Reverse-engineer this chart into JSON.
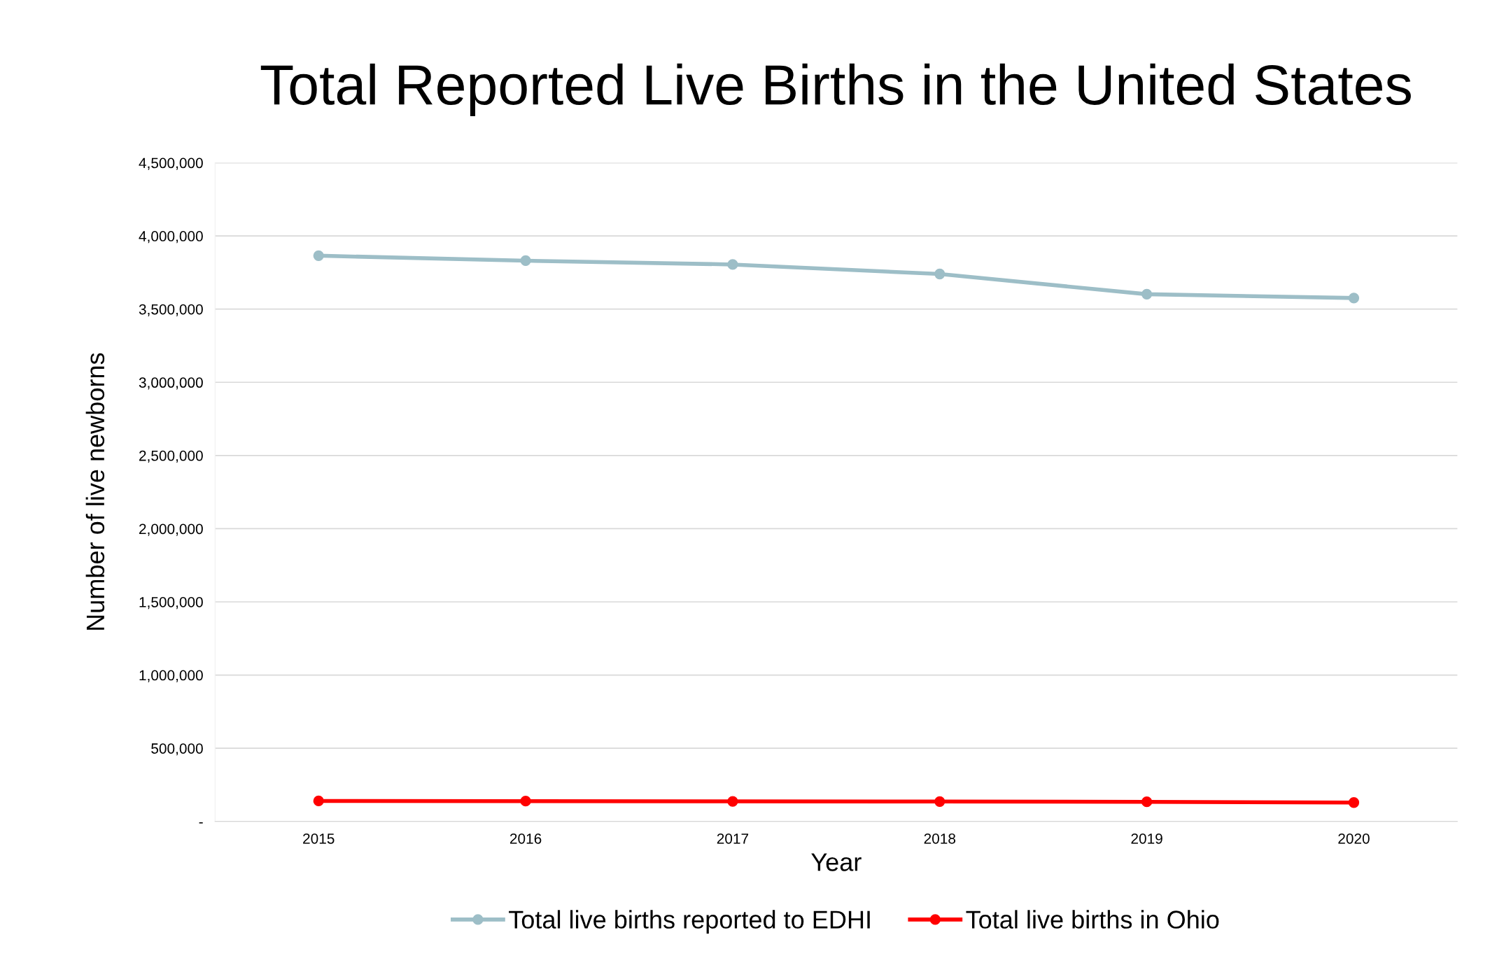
{
  "chart_data": {
    "type": "line",
    "title": "Total Reported Live Births in the United States",
    "xlabel": "Year",
    "ylabel": "Number of live newborns",
    "categories": [
      "2015",
      "2016",
      "2017",
      "2018",
      "2019",
      "2020"
    ],
    "series": [
      {
        "name": "Total live births reported to EDHI",
        "color": "#9dbec7",
        "values": [
          3865000,
          3831000,
          3805000,
          3740000,
          3602000,
          3576000
        ]
      },
      {
        "name": "Total live births in Ohio",
        "color": "#ff0000",
        "values": [
          140000,
          139000,
          137000,
          136000,
          134000,
          129000
        ]
      }
    ],
    "ylim": [
      0,
      4500000
    ],
    "yticks": [
      {
        "value": 0,
        "label": "-"
      },
      {
        "value": 500000,
        "label": "500,000"
      },
      {
        "value": 1000000,
        "label": "1,000,000"
      },
      {
        "value": 1500000,
        "label": "1,500,000"
      },
      {
        "value": 2000000,
        "label": "2,000,000"
      },
      {
        "value": 2500000,
        "label": "2,500,000"
      },
      {
        "value": 3000000,
        "label": "3,000,000"
      },
      {
        "value": 3500000,
        "label": "3,500,000"
      },
      {
        "value": 4000000,
        "label": "4,000,000"
      },
      {
        "value": 4500000,
        "label": "4,500,000"
      }
    ],
    "grid": "y",
    "legend": "bottom",
    "marker": "circle",
    "line_style": "solid"
  }
}
